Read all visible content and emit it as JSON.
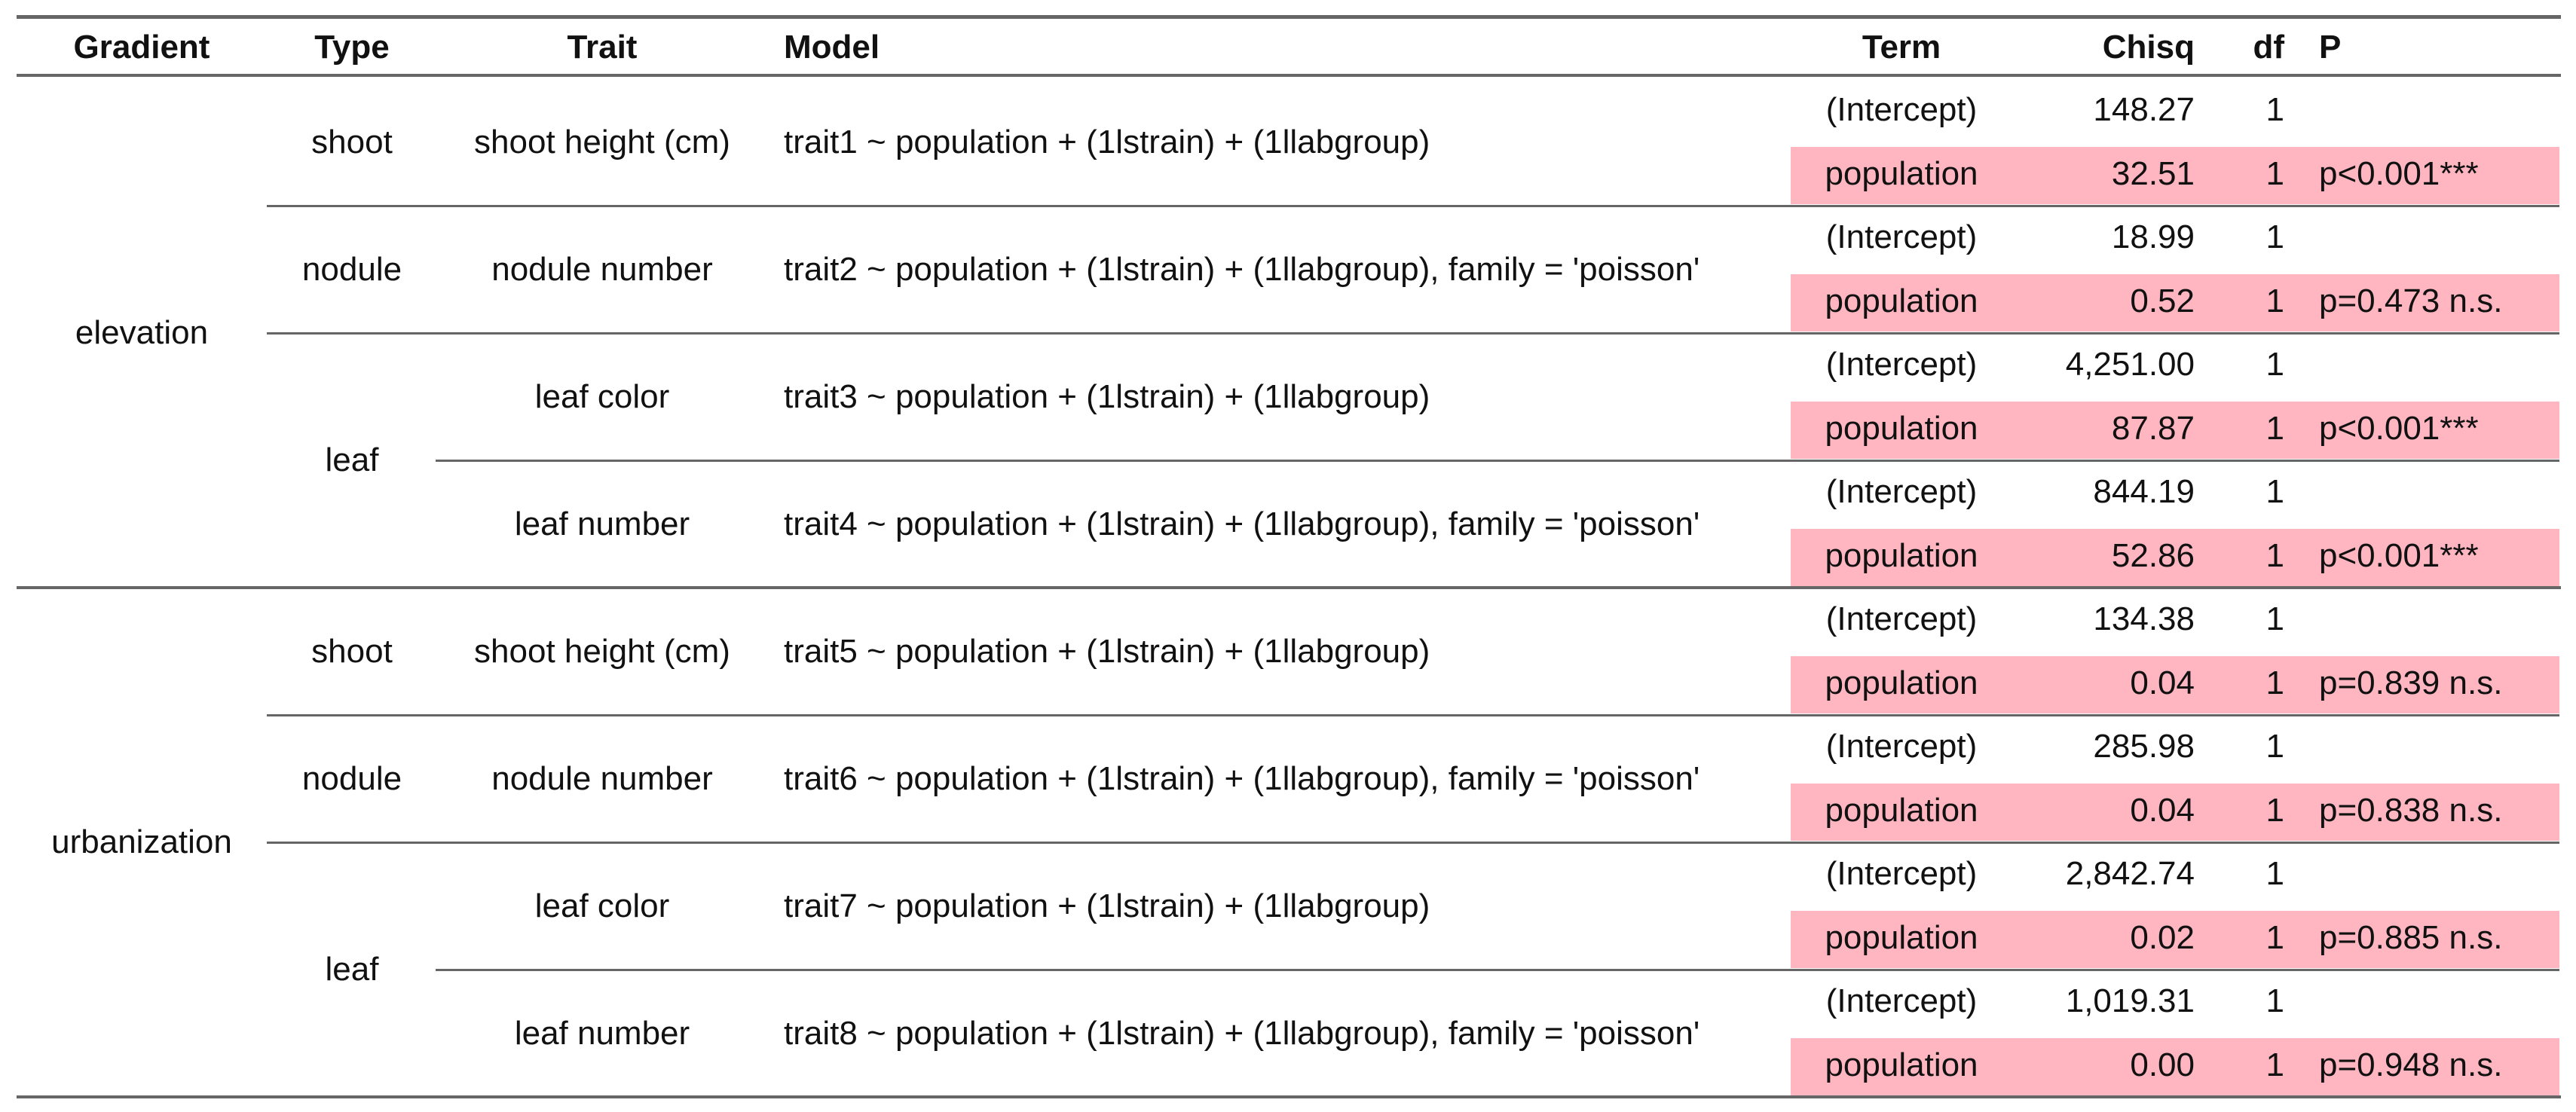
{
  "headers": {
    "gradient": "Gradient",
    "type": "Type",
    "trait": "Trait",
    "model": "Model",
    "term": "Term",
    "chisq": "Chisq",
    "df": "df",
    "p": "P"
  },
  "highlight_color": "#FFB6C1",
  "gradients": [
    {
      "name": "elevation",
      "types": [
        {
          "name": "shoot",
          "traits": [
            {
              "name": "shoot height (cm)",
              "model": "trait1 ~ population + (1lstrain) + (1llabgroup)",
              "terms": [
                {
                  "term": "(Intercept)",
                  "chisq": "148.27",
                  "df": "1",
                  "p": ""
                },
                {
                  "term": "population",
                  "chisq": "32.51",
                  "df": "1",
                  "p": "p<0.001***"
                }
              ]
            }
          ]
        },
        {
          "name": "nodule",
          "traits": [
            {
              "name": "nodule number",
              "model": "trait2 ~ population + (1lstrain) + (1llabgroup), family = 'poisson'",
              "terms": [
                {
                  "term": "(Intercept)",
                  "chisq": "18.99",
                  "df": "1",
                  "p": ""
                },
                {
                  "term": "population",
                  "chisq": "0.52",
                  "df": "1",
                  "p": "p=0.473 n.s."
                }
              ]
            }
          ]
        },
        {
          "name": "leaf",
          "traits": [
            {
              "name": "leaf color",
              "model": "trait3 ~ population + (1lstrain) + (1llabgroup)",
              "terms": [
                {
                  "term": "(Intercept)",
                  "chisq": "4,251.00",
                  "df": "1",
                  "p": ""
                },
                {
                  "term": "population",
                  "chisq": "87.87",
                  "df": "1",
                  "p": "p<0.001***"
                }
              ]
            },
            {
              "name": "leaf number",
              "model": "trait4 ~ population + (1lstrain) + (1llabgroup), family = 'poisson'",
              "terms": [
                {
                  "term": "(Intercept)",
                  "chisq": "844.19",
                  "df": "1",
                  "p": ""
                },
                {
                  "term": "population",
                  "chisq": "52.86",
                  "df": "1",
                  "p": "p<0.001***"
                }
              ]
            }
          ]
        }
      ]
    },
    {
      "name": "urbanization",
      "types": [
        {
          "name": "shoot",
          "traits": [
            {
              "name": "shoot height (cm)",
              "model": "trait5 ~ population + (1lstrain) + (1llabgroup)",
              "terms": [
                {
                  "term": "(Intercept)",
                  "chisq": "134.38",
                  "df": "1",
                  "p": ""
                },
                {
                  "term": "population",
                  "chisq": "0.04",
                  "df": "1",
                  "p": "p=0.839 n.s."
                }
              ]
            }
          ]
        },
        {
          "name": "nodule",
          "traits": [
            {
              "name": "nodule number",
              "model": "trait6 ~ population + (1lstrain) + (1llabgroup), family = 'poisson'",
              "terms": [
                {
                  "term": "(Intercept)",
                  "chisq": "285.98",
                  "df": "1",
                  "p": ""
                },
                {
                  "term": "population",
                  "chisq": "0.04",
                  "df": "1",
                  "p": "p=0.838 n.s."
                }
              ]
            }
          ]
        },
        {
          "name": "leaf",
          "traits": [
            {
              "name": "leaf color",
              "model": "trait7 ~ population + (1lstrain) + (1llabgroup)",
              "terms": [
                {
                  "term": "(Intercept)",
                  "chisq": "2,842.74",
                  "df": "1",
                  "p": ""
                },
                {
                  "term": "population",
                  "chisq": "0.02",
                  "df": "1",
                  "p": "p=0.885 n.s."
                }
              ]
            },
            {
              "name": "leaf number",
              "model": "trait8 ~ population + (1lstrain) + (1llabgroup), family = 'poisson'",
              "terms": [
                {
                  "term": "(Intercept)",
                  "chisq": "1,019.31",
                  "df": "1",
                  "p": ""
                },
                {
                  "term": "population",
                  "chisq": "0.00",
                  "df": "1",
                  "p": "p=0.948 n.s."
                }
              ]
            }
          ]
        }
      ]
    }
  ]
}
